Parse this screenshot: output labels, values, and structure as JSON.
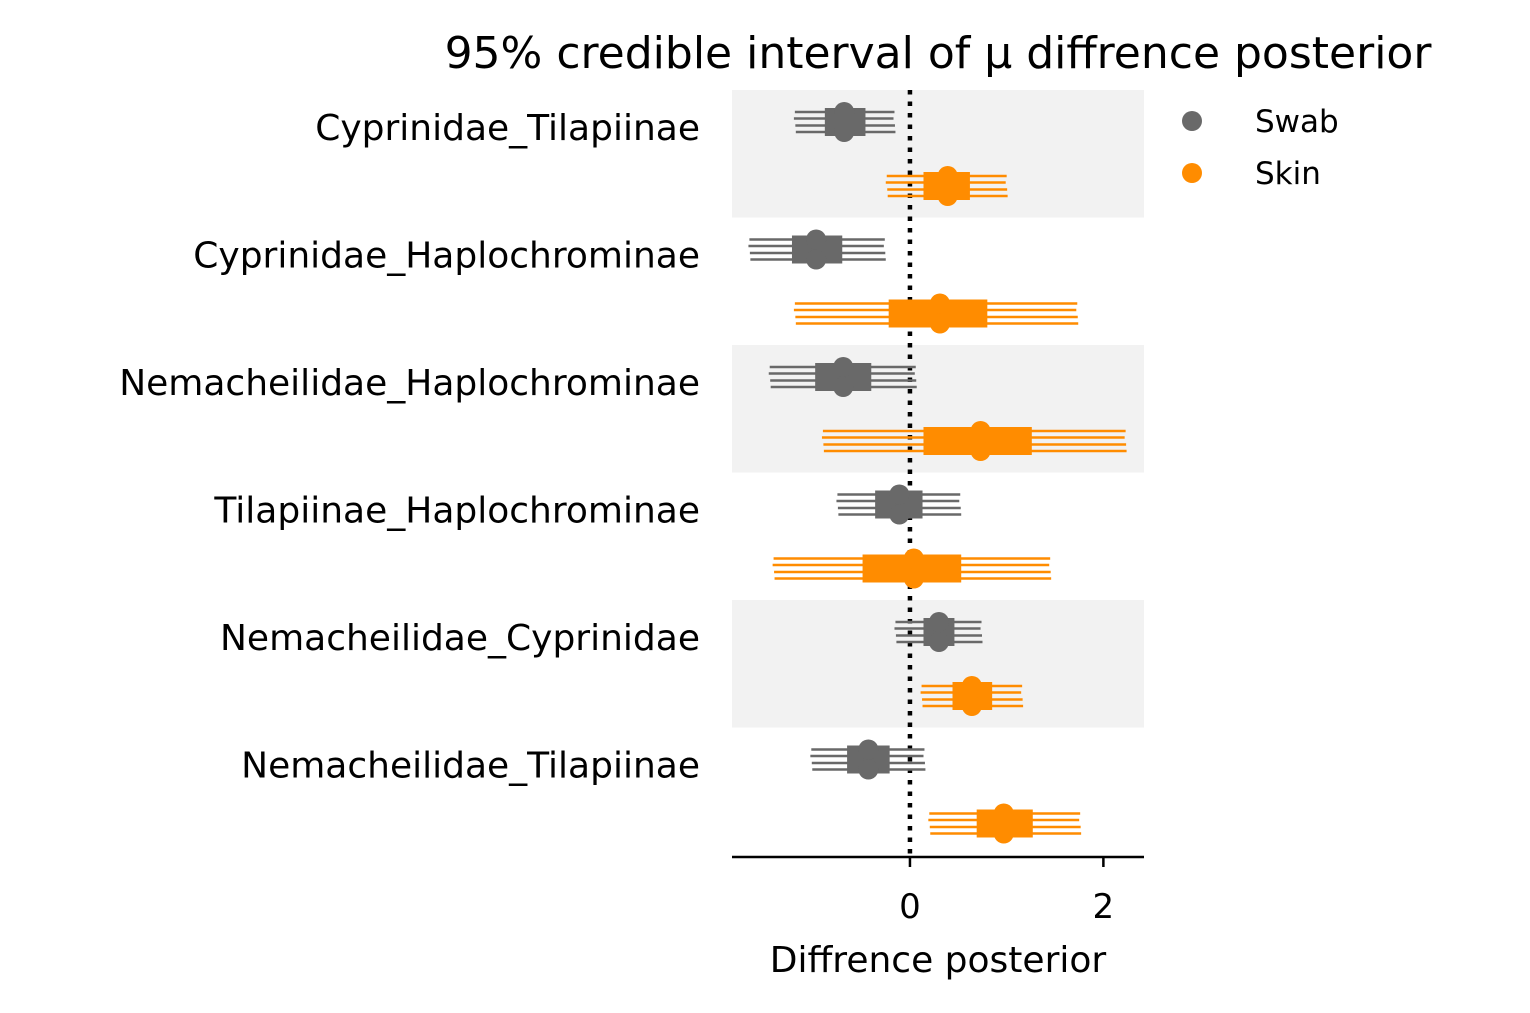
{
  "chart_data": {
    "type": "forest",
    "title": "95% credible interval of μ diffrence posterior",
    "xlabel": "Diffrence posterior",
    "ylabel": "",
    "xlim": [
      -1.84,
      2.42
    ],
    "x_ticks": [
      0,
      2
    ],
    "x_tick_labels": [
      "0",
      "2"
    ],
    "reference_line": 0,
    "grid": false,
    "legend_position": "top-right",
    "categories": [
      "Cyprinidae_Tilapiinae",
      "Cyprinidae_Haplochrominae",
      "Nemacheilidae_Haplochrominae",
      "Tilapiinae_Haplochrominae",
      "Nemacheilidae_Cyprinidae",
      "Nemacheilidae_Tilapiinae"
    ],
    "series": [
      {
        "name": "Swab",
        "color": "#696969",
        "intervals": [
          {
            "median": -0.68,
            "hdi_low": -1.19,
            "hdi_high": -0.16,
            "iqr_low": -0.88,
            "iqr_high": -0.46
          },
          {
            "median": -0.97,
            "hdi_low": -1.66,
            "hdi_high": -0.26,
            "iqr_low": -1.22,
            "iqr_high": -0.7
          },
          {
            "median": -0.69,
            "hdi_low": -1.45,
            "hdi_high": 0.06,
            "iqr_low": -0.98,
            "iqr_high": -0.4
          },
          {
            "median": -0.11,
            "hdi_low": -0.75,
            "hdi_high": 0.52,
            "iqr_low": -0.36,
            "iqr_high": 0.13
          },
          {
            "median": 0.3,
            "hdi_low": -0.15,
            "hdi_high": 0.74,
            "iqr_low": 0.14,
            "iqr_high": 0.46
          },
          {
            "median": -0.43,
            "hdi_low": -1.02,
            "hdi_high": 0.15,
            "iqr_low": -0.65,
            "iqr_high": -0.21
          }
        ]
      },
      {
        "name": "Skin",
        "color": "#ff8c00",
        "intervals": [
          {
            "median": 0.39,
            "hdi_low": -0.24,
            "hdi_high": 1.0,
            "iqr_low": 0.14,
            "iqr_high": 0.62
          },
          {
            "median": 0.31,
            "hdi_low": -1.19,
            "hdi_high": 1.73,
            "iqr_low": -0.22,
            "iqr_high": 0.8
          },
          {
            "median": 0.73,
            "hdi_low": -0.9,
            "hdi_high": 2.23,
            "iqr_low": 0.14,
            "iqr_high": 1.26
          },
          {
            "median": 0.04,
            "hdi_low": -1.41,
            "hdi_high": 1.45,
            "iqr_low": -0.49,
            "iqr_high": 0.53
          },
          {
            "median": 0.64,
            "hdi_low": 0.12,
            "hdi_high": 1.16,
            "iqr_low": 0.44,
            "iqr_high": 0.85
          },
          {
            "median": 0.97,
            "hdi_low": 0.2,
            "hdi_high": 1.76,
            "iqr_low": 0.69,
            "iqr_high": 1.27
          }
        ]
      }
    ]
  },
  "colors": {
    "band": "#f2f2f2",
    "axis": "#000000"
  }
}
